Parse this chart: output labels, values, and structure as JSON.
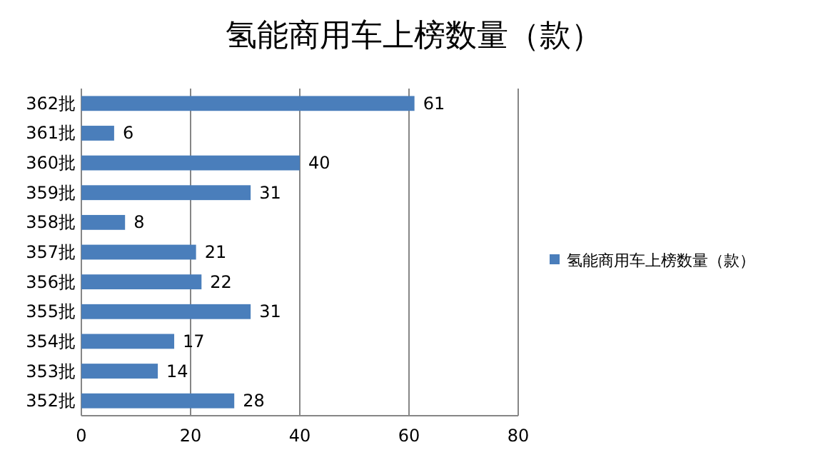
{
  "chart_data": {
    "type": "bar",
    "orientation": "horizontal",
    "title": "氢能商用车上榜数量（款）",
    "categories": [
      "362批",
      "361批",
      "360批",
      "359批",
      "358批",
      "357批",
      "356批",
      "355批",
      "354批",
      "353批",
      "352批"
    ],
    "series": [
      {
        "name": "氢能商用车上榜数量（款）",
        "color": "#4a7ebb",
        "values": [
          61,
          6,
          40,
          31,
          8,
          21,
          22,
          31,
          17,
          14,
          28
        ]
      }
    ],
    "xlim": [
      0,
      80
    ],
    "xticks": [
      0,
      20,
      40,
      60,
      80
    ],
    "grid": "x",
    "legend": "right",
    "data_labels": true
  }
}
